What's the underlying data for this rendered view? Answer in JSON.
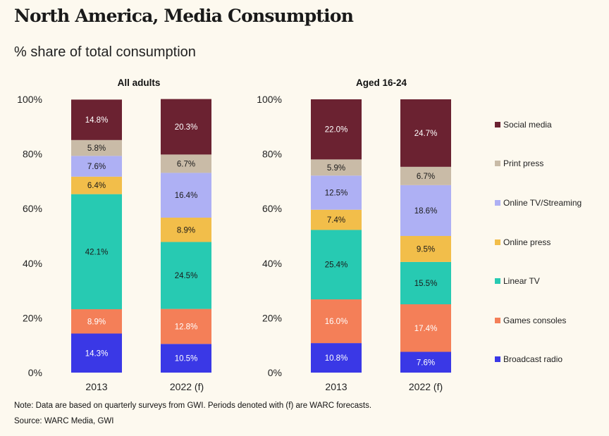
{
  "title": "North America, Media Consumption",
  "subtitle": "% share of total consumption",
  "note": "Note: Data are based on quarterly surveys from GWI. Periods denoted with (f) are WARC forecasts.",
  "source": "Source: WARC Media, GWI",
  "chart_data": [
    {
      "type": "bar",
      "stacked": true,
      "title": "All adults",
      "categories": [
        "2013",
        "2022 (f)"
      ],
      "yticks": [
        "0%",
        "20%",
        "40%",
        "60%",
        "80%",
        "100%"
      ],
      "ylim": [
        0,
        100
      ],
      "series": [
        {
          "name": "Broadcast radio",
          "values": [
            14.3,
            10.5
          ],
          "labels": [
            "14.3%",
            "10.5%"
          ]
        },
        {
          "name": "Games consoles",
          "values": [
            8.9,
            12.8
          ],
          "labels": [
            "8.9%",
            "12.8%"
          ]
        },
        {
          "name": "Linear TV",
          "values": [
            42.1,
            24.5
          ],
          "labels": [
            "42.1%",
            "24.5%"
          ]
        },
        {
          "name": "Online press",
          "values": [
            6.4,
            8.9
          ],
          "labels": [
            "6.4%",
            "8.9%"
          ]
        },
        {
          "name": "Online TV/Streaming",
          "values": [
            7.6,
            16.4
          ],
          "labels": [
            "7.6%",
            "16.4%"
          ]
        },
        {
          "name": "Print press",
          "values": [
            5.8,
            6.7
          ],
          "labels": [
            "5.8%",
            "6.7%"
          ]
        },
        {
          "name": "Social media",
          "values": [
            14.8,
            20.3
          ],
          "labels": [
            "14.8%",
            "20.3%"
          ]
        }
      ]
    },
    {
      "type": "bar",
      "stacked": true,
      "title": "Aged 16-24",
      "categories": [
        "2013",
        "2022 (f)"
      ],
      "yticks": [
        "0%",
        "20%",
        "40%",
        "60%",
        "80%",
        "100%"
      ],
      "ylim": [
        0,
        100
      ],
      "series": [
        {
          "name": "Broadcast radio",
          "values": [
            10.8,
            7.6
          ],
          "labels": [
            "10.8%",
            "7.6%"
          ]
        },
        {
          "name": "Games consoles",
          "values": [
            16.0,
            17.4
          ],
          "labels": [
            "16.0%",
            "17.4%"
          ]
        },
        {
          "name": "Linear TV",
          "values": [
            25.4,
            15.5
          ],
          "labels": [
            "25.4%",
            "15.5%"
          ]
        },
        {
          "name": "Online press",
          "values": [
            7.4,
            9.5
          ],
          "labels": [
            "7.4%",
            "9.5%"
          ]
        },
        {
          "name": "Online TV/Streaming",
          "values": [
            12.5,
            18.6
          ],
          "labels": [
            "12.5%",
            "18.6%"
          ]
        },
        {
          "name": "Print press",
          "values": [
            5.9,
            6.7
          ],
          "labels": [
            "5.9%",
            "6.7%"
          ]
        },
        {
          "name": "Social media",
          "values": [
            22.0,
            24.7
          ],
          "labels": [
            "22.0%",
            "24.7%"
          ]
        }
      ]
    }
  ],
  "legend": [
    {
      "label": "Social media",
      "color": "#6b2231"
    },
    {
      "label": "Print press",
      "color": "#c9bba7"
    },
    {
      "label": "Online TV/Streaming",
      "color": "#aeb0f4"
    },
    {
      "label": "Online press",
      "color": "#f2be4a"
    },
    {
      "label": "Linear TV",
      "color": "#27cab2"
    },
    {
      "label": "Games consoles",
      "color": "#f47f58"
    },
    {
      "label": "Broadcast radio",
      "color": "#3a38e6"
    }
  ],
  "colors": {
    "Broadcast radio": "#3a38e6",
    "Games consoles": "#f47f58",
    "Linear TV": "#27cab2",
    "Online press": "#f2be4a",
    "Online TV/Streaming": "#aeb0f4",
    "Print press": "#c9bba7",
    "Social media": "#6b2231"
  },
  "label_colors": {
    "Broadcast radio": "#ffffff",
    "Games consoles": "#ffffff",
    "Linear TV": "#1a1a1a",
    "Online press": "#1a1a1a",
    "Online TV/Streaming": "#1a1a1a",
    "Print press": "#1a1a1a",
    "Social media": "#ffffff"
  }
}
